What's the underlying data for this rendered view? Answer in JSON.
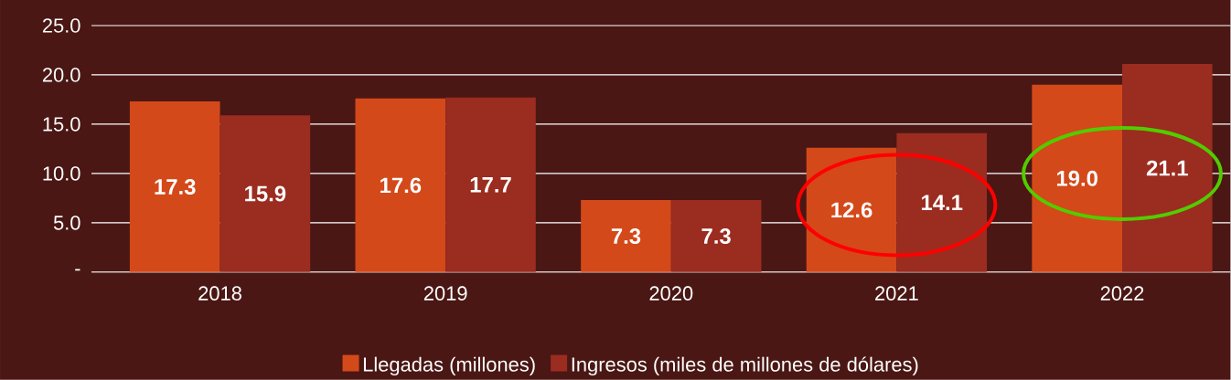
{
  "chart_data": {
    "type": "bar",
    "categories": [
      "2018",
      "2019",
      "2020",
      "2021",
      "2022"
    ],
    "series": [
      {
        "name": "Llegadas (millones)",
        "color": "#d4491a",
        "values": [
          17.3,
          17.6,
          7.3,
          12.6,
          19.0
        ],
        "value_labels": [
          "17.3",
          "17.6",
          "7.3",
          "12.6",
          "19.0"
        ]
      },
      {
        "name": "Ingresos (miles de millones de dólares)",
        "color": "#9b2c20",
        "values": [
          15.9,
          17.7,
          7.3,
          14.1,
          21.1
        ],
        "value_labels": [
          "15.9",
          "17.7",
          "7.3",
          "14.1",
          "21.1"
        ]
      }
    ],
    "ylim": [
      0,
      25
    ],
    "yticks": [
      {
        "value": 0,
        "label": "-"
      },
      {
        "value": 5,
        "label": "5.0"
      },
      {
        "value": 10,
        "label": "10.0"
      },
      {
        "value": 15,
        "label": "15.0"
      },
      {
        "value": 20,
        "label": "20.0"
      },
      {
        "value": 25,
        "label": "25.0"
      }
    ],
    "grid": "y",
    "legend": "bottom"
  }
}
